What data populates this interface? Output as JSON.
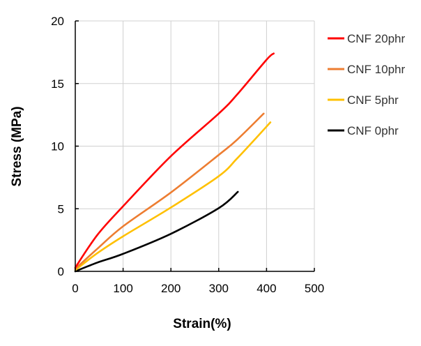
{
  "chart_data": {
    "type": "line",
    "title": "",
    "xlabel": "Strain(%)",
    "ylabel": "Stress (MPa)",
    "xlim": [
      0,
      500
    ],
    "ylim": [
      0,
      20
    ],
    "xticks": [
      0,
      100,
      200,
      300,
      400,
      500
    ],
    "yticks": [
      0,
      5,
      10,
      15,
      20
    ],
    "grid": true,
    "legend_position": "right",
    "series": [
      {
        "name": "CNF 20phr",
        "color": "#ff0000",
        "x": [
          0,
          46,
          100,
          200,
          300,
          338,
          400,
          415
        ],
        "y": [
          0.3,
          2.9,
          5.2,
          9.2,
          12.6,
          14.1,
          16.9,
          17.4
        ]
      },
      {
        "name": "CNF 10phr",
        "color": "#ed7d31",
        "x": [
          0,
          46,
          100,
          200,
          300,
          338,
          394
        ],
        "y": [
          0.2,
          1.8,
          3.6,
          6.3,
          9.3,
          10.5,
          12.6
        ]
      },
      {
        "name": "CNF 5phr",
        "color": "#ffc000",
        "x": [
          0,
          46,
          100,
          200,
          300,
          338,
          377,
          408
        ],
        "y": [
          0.1,
          1.45,
          2.8,
          5.1,
          7.6,
          9.0,
          10.6,
          11.9
        ]
      },
      {
        "name": "CNF 0phr",
        "color": "#000000",
        "x": [
          0,
          46,
          100,
          200,
          300,
          340
        ],
        "y": [
          0,
          0.7,
          1.4,
          3.0,
          5.05,
          6.35
        ]
      }
    ]
  }
}
